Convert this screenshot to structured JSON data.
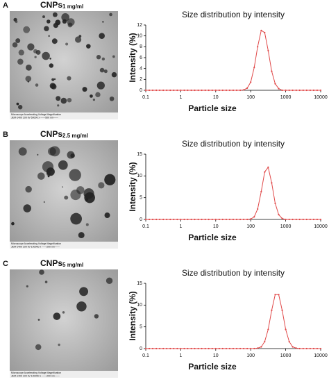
{
  "panels": [
    {
      "label": "A",
      "image_title": "CNPs",
      "image_concentration": "1 mg/ml",
      "caption_header": "Microscope Accelerating Voltage Magnification",
      "caption": "JEM-1400  100 kV  50000 x  ——500 nm——"
    },
    {
      "label": "B",
      "image_title": "CNPs",
      "image_concentration": "2.5 mg/ml",
      "caption_header": "Microscope Accelerating Voltage Magnification",
      "caption": "JEM-1400  100 kV  100000 x  ——200 nm——"
    },
    {
      "label": "C",
      "image_title": "CNPs",
      "image_concentration": "5 mg/ml",
      "caption_header": "Microscope Accelerating Voltage Magnification",
      "caption": "JEM-1400  100 kV  100000 x  ——200 nm——"
    }
  ],
  "chart_data": [
    {
      "type": "line",
      "title": "Size distribution by intensity",
      "x_label": "Particle size",
      "y_label": "Intensity (%)",
      "xscale": "log",
      "xlim": [
        0.1,
        10000
      ],
      "xticks": [
        0.1,
        1,
        10,
        100,
        1000,
        10000
      ],
      "ylim": [
        0,
        12
      ],
      "yticks": [
        0,
        2,
        4,
        6,
        8,
        10,
        12
      ],
      "x": [
        0.1,
        0.126,
        0.158,
        0.2,
        0.251,
        0.316,
        0.398,
        0.501,
        0.631,
        0.794,
        1,
        1.26,
        1.58,
        2,
        2.51,
        3.16,
        3.98,
        5.01,
        6.31,
        7.94,
        10,
        12.6,
        15.8,
        20,
        25.1,
        31.6,
        39.8,
        50.1,
        63.1,
        79.4,
        100,
        126,
        158,
        200,
        251,
        316,
        398,
        501,
        631,
        794,
        1000,
        1260,
        1580,
        2000,
        2510,
        3160,
        3980,
        5010,
        6310,
        7940,
        10000
      ],
      "series": [
        {
          "color": "#e04848",
          "values": [
            0,
            0,
            0,
            0,
            0,
            0,
            0,
            0,
            0,
            0,
            0,
            0,
            0,
            0,
            0,
            0,
            0,
            0,
            0,
            0,
            0,
            0,
            0,
            0,
            0,
            0,
            0,
            0,
            0.07,
            0.4,
            1.5,
            4.2,
            8.0,
            11.0,
            10.6,
            7.3,
            3.5,
            1.2,
            0.3,
            0,
            0,
            0,
            0,
            0,
            0,
            0,
            0,
            0,
            0,
            0,
            0
          ]
        }
      ]
    },
    {
      "type": "line",
      "title": "Size distribution by intensity",
      "x_label": "Particle size",
      "y_label": "Intensity (%)",
      "xscale": "log",
      "xlim": [
        0.1,
        10000
      ],
      "xticks": [
        0.1,
        1,
        10,
        100,
        1000,
        10000
      ],
      "ylim": [
        0,
        15
      ],
      "yticks": [
        0,
        5,
        10,
        15
      ],
      "x": [
        0.1,
        0.126,
        0.158,
        0.2,
        0.251,
        0.316,
        0.398,
        0.501,
        0.631,
        0.794,
        1,
        1.26,
        1.58,
        2,
        2.51,
        3.16,
        3.98,
        5.01,
        6.31,
        7.94,
        10,
        12.6,
        15.8,
        20,
        25.1,
        31.6,
        39.8,
        50.1,
        63.1,
        79.4,
        100,
        126,
        158,
        200,
        251,
        316,
        398,
        501,
        631,
        794,
        1000,
        1260,
        1580,
        2000,
        2510,
        3160,
        3980,
        5010,
        6310,
        7940,
        10000
      ],
      "series": [
        {
          "color": "#e04848",
          "values": [
            0,
            0,
            0,
            0,
            0,
            0,
            0,
            0,
            0,
            0,
            0,
            0,
            0,
            0,
            0,
            0,
            0,
            0,
            0,
            0,
            0,
            0,
            0,
            0,
            0,
            0,
            0,
            0,
            0,
            0,
            0.1,
            0.6,
            2.4,
            6.4,
            10.9,
            12.0,
            8.4,
            3.7,
            1.1,
            0.2,
            0,
            0,
            0,
            0,
            0,
            0,
            0,
            0,
            0,
            0,
            0
          ]
        }
      ]
    },
    {
      "type": "line",
      "title": "Size distribution by intensity",
      "x_label": "Particle size",
      "y_label": "Intensity (%)",
      "xscale": "log",
      "xlim": [
        0.1,
        10000
      ],
      "xticks": [
        0.1,
        1,
        10,
        100,
        1000,
        10000
      ],
      "ylim": [
        0,
        15
      ],
      "yticks": [
        0,
        5,
        10,
        15
      ],
      "x": [
        0.1,
        0.126,
        0.158,
        0.2,
        0.251,
        0.316,
        0.398,
        0.501,
        0.631,
        0.794,
        1,
        1.26,
        1.58,
        2,
        2.51,
        3.16,
        3.98,
        5.01,
        6.31,
        7.94,
        10,
        12.6,
        15.8,
        20,
        25.1,
        31.6,
        39.8,
        50.1,
        63.1,
        79.4,
        100,
        126,
        158,
        200,
        251,
        316,
        398,
        501,
        631,
        794,
        1000,
        1260,
        1580,
        2000,
        2510,
        3160,
        3980,
        5010,
        6310,
        7940,
        10000
      ],
      "series": [
        {
          "color": "#e04848",
          "values": [
            0,
            0,
            0,
            0,
            0,
            0,
            0,
            0,
            0,
            0,
            0,
            0,
            0,
            0,
            0,
            0,
            0,
            0,
            0,
            0,
            0,
            0,
            0,
            0,
            0,
            0,
            0,
            0,
            0,
            0,
            0,
            0,
            0.1,
            0.4,
            1.6,
            4.4,
            8.8,
            12.4,
            12.4,
            8.8,
            4.4,
            1.6,
            0.4,
            0.1,
            0,
            0,
            0,
            0,
            0,
            0,
            0
          ]
        }
      ]
    }
  ]
}
